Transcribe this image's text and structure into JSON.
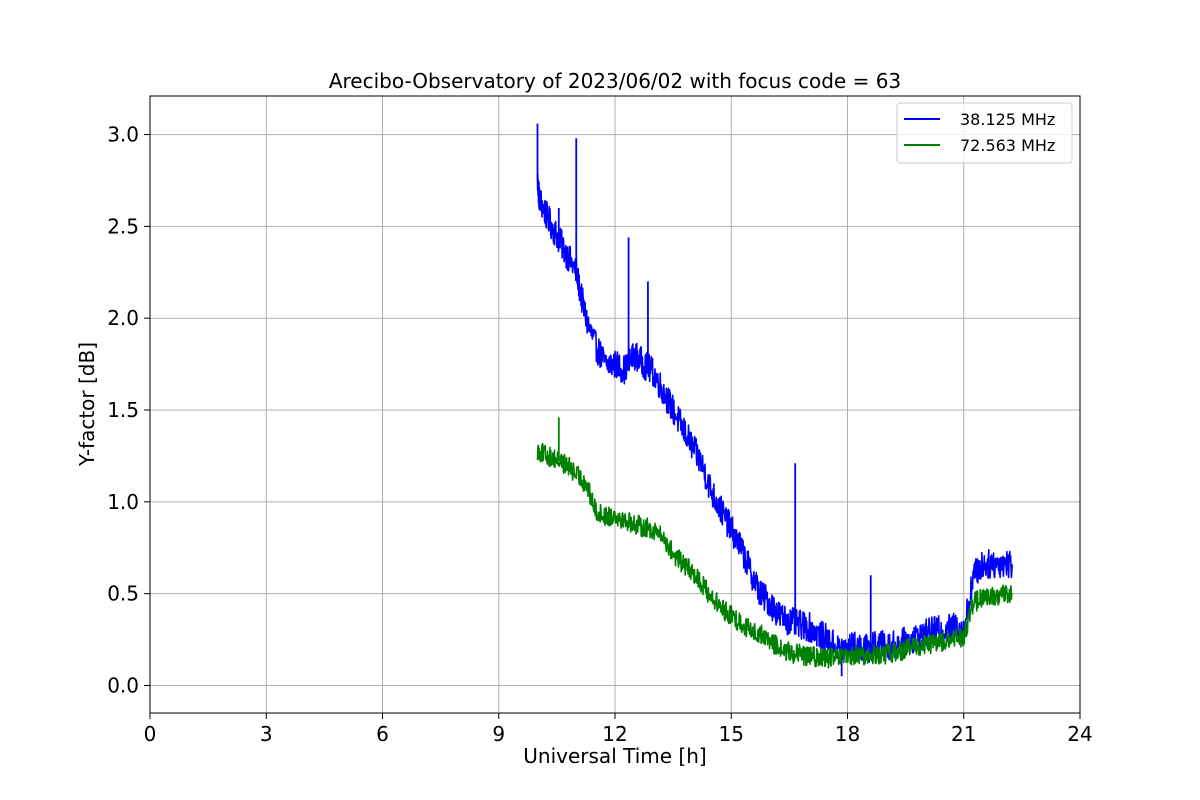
{
  "chart_data": {
    "type": "line",
    "title": "Arecibo-Observatory of 2023/06/02 with focus code = 63",
    "xlabel": "Universal Time [h]",
    "ylabel": "Y-factor [dB]",
    "xlim": [
      0,
      24
    ],
    "ylim": [
      -0.15,
      3.21
    ],
    "xticks": [
      0,
      3,
      6,
      9,
      12,
      15,
      18,
      21,
      24
    ],
    "xtick_labels": [
      "0",
      "3",
      "6",
      "9",
      "12",
      "15",
      "18",
      "21",
      "24"
    ],
    "yticks": [
      0.0,
      0.5,
      1.0,
      1.5,
      2.0,
      2.5,
      3.0
    ],
    "ytick_labels": [
      "0.0",
      "0.5",
      "1.0",
      "1.5",
      "2.0",
      "2.5",
      "3.0"
    ],
    "grid": true,
    "legend_position": "top-right",
    "series": [
      {
        "name": "38.125 MHz",
        "color": "#0000ff",
        "x": [
          10.0,
          10.05,
          10.25,
          10.5,
          10.75,
          11.0,
          11.25,
          11.5,
          11.75,
          12.0,
          12.25,
          12.5,
          12.75,
          13.0,
          13.25,
          13.5,
          13.75,
          14.0,
          14.25,
          14.5,
          14.75,
          15.0,
          15.25,
          15.5,
          15.75,
          16.0,
          16.25,
          16.5,
          16.75,
          17.0,
          17.25,
          17.5,
          17.75,
          18.0,
          18.25,
          18.5,
          18.75,
          19.0,
          19.25,
          19.5,
          19.75,
          20.0,
          20.25,
          20.5,
          20.75,
          21.0,
          21.25,
          21.5,
          21.75,
          22.0,
          22.25
        ],
        "y": [
          2.75,
          2.65,
          2.55,
          2.45,
          2.35,
          2.25,
          2.0,
          1.85,
          1.75,
          1.75,
          1.72,
          1.8,
          1.75,
          1.7,
          1.6,
          1.5,
          1.4,
          1.3,
          1.2,
          1.05,
          0.95,
          0.85,
          0.75,
          0.62,
          0.5,
          0.45,
          0.38,
          0.35,
          0.33,
          0.32,
          0.28,
          0.25,
          0.2,
          0.2,
          0.22,
          0.2,
          0.22,
          0.22,
          0.22,
          0.24,
          0.26,
          0.28,
          0.3,
          0.3,
          0.32,
          0.3,
          0.6,
          0.66,
          0.66,
          0.67,
          0.66
        ],
        "spikes": [
          [
            10.0,
            3.06
          ],
          [
            10.55,
            2.6
          ],
          [
            11.0,
            2.98
          ],
          [
            12.35,
            2.44
          ],
          [
            12.85,
            2.2
          ],
          [
            16.65,
            1.21
          ],
          [
            17.85,
            0.05
          ],
          [
            18.6,
            0.6
          ]
        ],
        "noise": 0.08
      },
      {
        "name": "72.563 MHz",
        "color": "#008000",
        "x": [
          10.0,
          10.25,
          10.5,
          10.75,
          11.0,
          11.25,
          11.5,
          11.75,
          12.0,
          12.25,
          12.5,
          12.75,
          13.0,
          13.25,
          13.5,
          13.75,
          14.0,
          14.25,
          14.5,
          14.75,
          15.0,
          15.25,
          15.5,
          15.75,
          16.0,
          16.25,
          16.5,
          16.75,
          17.0,
          17.25,
          17.5,
          17.75,
          18.0,
          18.25,
          18.5,
          18.75,
          19.0,
          19.25,
          19.5,
          19.75,
          20.0,
          20.25,
          20.5,
          20.75,
          21.0,
          21.25,
          21.5,
          21.75,
          22.0,
          22.25
        ],
        "y": [
          1.28,
          1.25,
          1.23,
          1.2,
          1.15,
          1.1,
          0.95,
          0.92,
          0.93,
          0.9,
          0.88,
          0.86,
          0.85,
          0.8,
          0.72,
          0.66,
          0.62,
          0.55,
          0.48,
          0.42,
          0.38,
          0.34,
          0.3,
          0.28,
          0.24,
          0.2,
          0.18,
          0.17,
          0.16,
          0.15,
          0.15,
          0.15,
          0.15,
          0.16,
          0.16,
          0.17,
          0.17,
          0.18,
          0.2,
          0.21,
          0.22,
          0.23,
          0.24,
          0.25,
          0.27,
          0.45,
          0.48,
          0.48,
          0.5,
          0.5
        ],
        "spikes": [
          [
            10.55,
            1.46
          ],
          [
            11.4,
            1.0
          ]
        ],
        "noise": 0.055
      }
    ]
  }
}
